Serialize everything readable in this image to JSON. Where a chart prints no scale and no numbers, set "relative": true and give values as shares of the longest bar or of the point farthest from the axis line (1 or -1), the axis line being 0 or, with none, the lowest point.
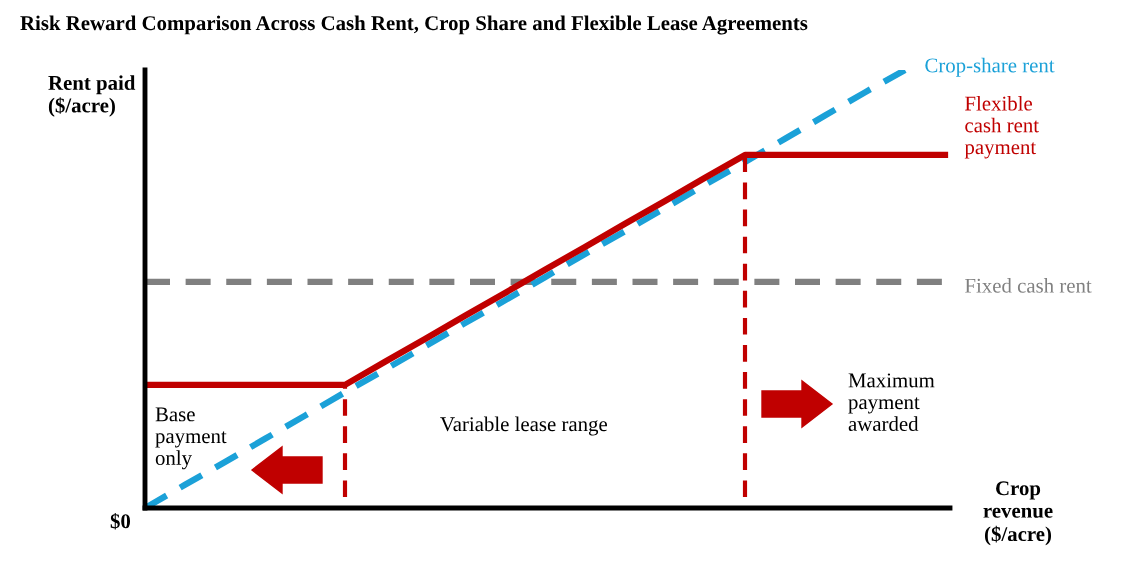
{
  "chart_data": {
    "type": "line",
    "relative": true,
    "title": "Risk Reward Comparison Across Cash Rent, Crop Share and Flexible Lease Agreements",
    "xlabel": "Crop\nrevenue\n($/acre)",
    "ylabel": "Rent paid\n($/acre)",
    "categories": [
      null,
      null,
      null,
      null,
      null,
      null,
      null,
      null,
      null,
      null,
      null,
      null,
      null,
      null,
      null,
      null,
      null,
      null,
      null,
      null,
      null
    ],
    "series": [
      {
        "name": "Fixed cash rent",
        "color": "#808080",
        "line_style": "dashed",
        "values": [
          0.516,
          0.516,
          0.516,
          0.516,
          0.516,
          0.516,
          0.516,
          0.516,
          0.516,
          0.516,
          0.516,
          0.516,
          0.516,
          0.516,
          0.516,
          0.516,
          0.516,
          0.516,
          0.516,
          0.516,
          0.516
        ]
      },
      {
        "name": "Crop-share rent",
        "color": "#1ba1d8",
        "line_style": "dashed",
        "values": [
          0,
          0.053,
          0.105,
          0.158,
          0.211,
          0.264,
          0.316,
          0.369,
          0.422,
          0.474,
          0.527,
          0.58,
          0.632,
          0.685,
          0.738,
          0.79,
          0.843,
          0.896,
          0.949,
          1,
          null
        ]
      },
      {
        "name": "Flexible\ncash rent\npayment",
        "color": "#c00000",
        "line_style": "solid",
        "values": [
          0.281,
          0.281,
          0.281,
          0.281,
          0.281,
          0.281,
          0.334,
          0.386,
          0.439,
          0.491,
          0.544,
          0.596,
          0.649,
          0.701,
          0.754,
          0.806,
          0.806,
          0.806,
          0.806,
          0.806,
          0.806
        ]
      }
    ],
    "annotations": [
      "$0",
      "Base\npayment\nonly",
      "Variable lease range",
      "Maximum\npayment\nawarded"
    ],
    "legend": false
  }
}
